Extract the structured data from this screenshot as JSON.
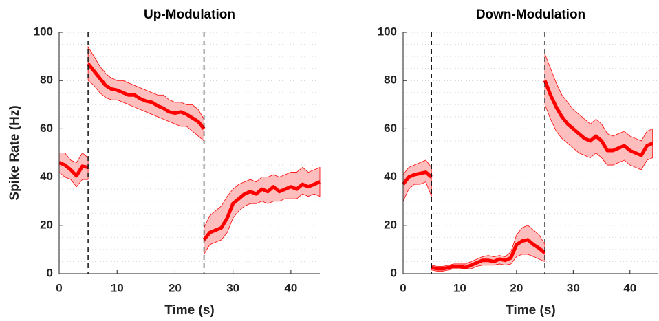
{
  "chart_data": [
    {
      "type": "band-line",
      "title": "Up-Modulation",
      "x_label": "Time (s)",
      "y_label": "Spike Rate (Hz)",
      "color": "#ff0000",
      "band_color": "#ffb3b3",
      "grid": true,
      "xlim": [
        0,
        45
      ],
      "ylim": [
        0,
        100
      ],
      "xticks": [
        0,
        10,
        20,
        30,
        40
      ],
      "yticks": [
        0,
        20,
        40,
        60,
        80,
        100
      ],
      "yminorticks": [
        5,
        10,
        15,
        25,
        30,
        35,
        45,
        50,
        55,
        65,
        70,
        75,
        85,
        90,
        95
      ],
      "vlines": [
        5,
        25
      ],
      "segments": [
        {
          "x": [
            0,
            1,
            2,
            3,
            4,
            5
          ],
          "values": [
            46,
            45,
            43,
            40.5,
            44.5,
            44
          ],
          "upper": [
            50,
            50,
            47,
            46,
            50,
            48
          ],
          "lower": [
            42,
            40,
            39,
            36,
            39,
            39
          ]
        },
        {
          "x": [
            5,
            6,
            7,
            8,
            9,
            10,
            11,
            12,
            13,
            14,
            15,
            16,
            17,
            18,
            19,
            20,
            21,
            22,
            23,
            24,
            25
          ],
          "values": [
            87,
            84,
            81,
            78,
            76.5,
            76,
            75,
            74,
            74,
            72.5,
            71.5,
            71,
            69.5,
            68.5,
            67,
            66.5,
            67,
            66,
            64.5,
            63,
            60
          ],
          "upper": [
            94,
            90,
            86,
            83,
            81,
            80,
            80,
            79,
            78,
            77,
            76,
            75,
            74,
            74,
            72,
            71,
            71,
            70,
            70,
            68,
            64
          ],
          "lower": [
            80,
            78,
            75,
            73,
            72,
            72,
            71,
            70,
            69,
            68,
            67,
            66,
            65,
            64,
            63,
            62,
            61,
            61,
            59,
            57,
            55
          ]
        },
        {
          "x": [
            25,
            26,
            27,
            28,
            29,
            30,
            31,
            32,
            33,
            34,
            35,
            36,
            37,
            38,
            39,
            40,
            41,
            42,
            43,
            44,
            45
          ],
          "values": [
            14,
            17,
            18,
            19,
            23,
            29,
            31,
            33,
            34,
            33,
            35,
            34,
            36,
            34,
            35,
            36,
            35,
            37,
            36,
            37,
            38
          ],
          "upper": [
            19,
            24,
            26,
            28,
            32,
            35,
            37,
            38,
            39,
            38,
            40,
            40,
            41,
            40,
            41,
            42,
            42,
            44,
            42,
            43,
            44
          ],
          "lower": [
            8,
            12,
            13,
            14,
            17,
            23,
            26,
            28,
            29,
            29,
            30,
            29,
            30,
            30,
            31,
            31,
            31,
            33,
            32,
            33,
            32
          ]
        }
      ]
    },
    {
      "type": "band-line",
      "title": "Down-Modulation",
      "x_label": "Time (s)",
      "color": "#ff0000",
      "band_color": "#ffb3b3",
      "grid": true,
      "xlim": [
        0,
        45
      ],
      "ylim": [
        0,
        100
      ],
      "xticks": [
        0,
        10,
        20,
        30,
        40
      ],
      "yticks": [
        0,
        20,
        40,
        60,
        80,
        100
      ],
      "yminorticks": [
        5,
        10,
        15,
        25,
        30,
        35,
        45,
        50,
        55,
        65,
        70,
        75,
        85,
        90,
        95
      ],
      "vlines": [
        5,
        25
      ],
      "segments": [
        {
          "x": [
            0,
            1,
            2,
            3,
            4,
            5
          ],
          "values": [
            37,
            40,
            41,
            41.5,
            42,
            40
          ],
          "upper": [
            41,
            44,
            45,
            46,
            47,
            44
          ],
          "lower": [
            30,
            35,
            37,
            37,
            38,
            32
          ]
        },
        {
          "x": [
            5,
            6,
            7,
            8,
            9,
            10,
            11,
            12,
            13,
            14,
            15,
            16,
            17,
            18,
            19,
            20,
            21,
            22,
            23,
            24,
            25
          ],
          "values": [
            2.5,
            2,
            2,
            2.5,
            3,
            3,
            2.5,
            3.5,
            4.5,
            5.5,
            5.5,
            5,
            6,
            5.5,
            6.5,
            12,
            13.5,
            14,
            12,
            10.5,
            8.5
          ],
          "upper": [
            3.5,
            3,
            3,
            3.5,
            4,
            4,
            4,
            5,
            6,
            7,
            7.5,
            7,
            7.5,
            7,
            9,
            16,
            19,
            20,
            18,
            16,
            12
          ],
          "lower": [
            1.5,
            1,
            1,
            1.5,
            2,
            2,
            2,
            2,
            3,
            3.5,
            3.5,
            3.5,
            4,
            3.5,
            4,
            7,
            8,
            8,
            7,
            6,
            5
          ]
        },
        {
          "x": [
            25,
            26,
            27,
            28,
            29,
            30,
            31,
            32,
            33,
            34,
            35,
            36,
            37,
            38,
            39,
            40,
            41,
            42,
            43,
            44
          ],
          "values": [
            80,
            74,
            69,
            65,
            62,
            60,
            58,
            56,
            55,
            57,
            55,
            51,
            51,
            52,
            53,
            51,
            50,
            49,
            53,
            54
          ],
          "upper": [
            91,
            85,
            79,
            74,
            71,
            68,
            66,
            64,
            62,
            64,
            62,
            58,
            57,
            58,
            59,
            57,
            56,
            55,
            59,
            60
          ],
          "lower": [
            70,
            64,
            59,
            56,
            54,
            52,
            50,
            49,
            48,
            50,
            48,
            45,
            45,
            46,
            47,
            45,
            44,
            43,
            47,
            48
          ]
        }
      ]
    }
  ]
}
